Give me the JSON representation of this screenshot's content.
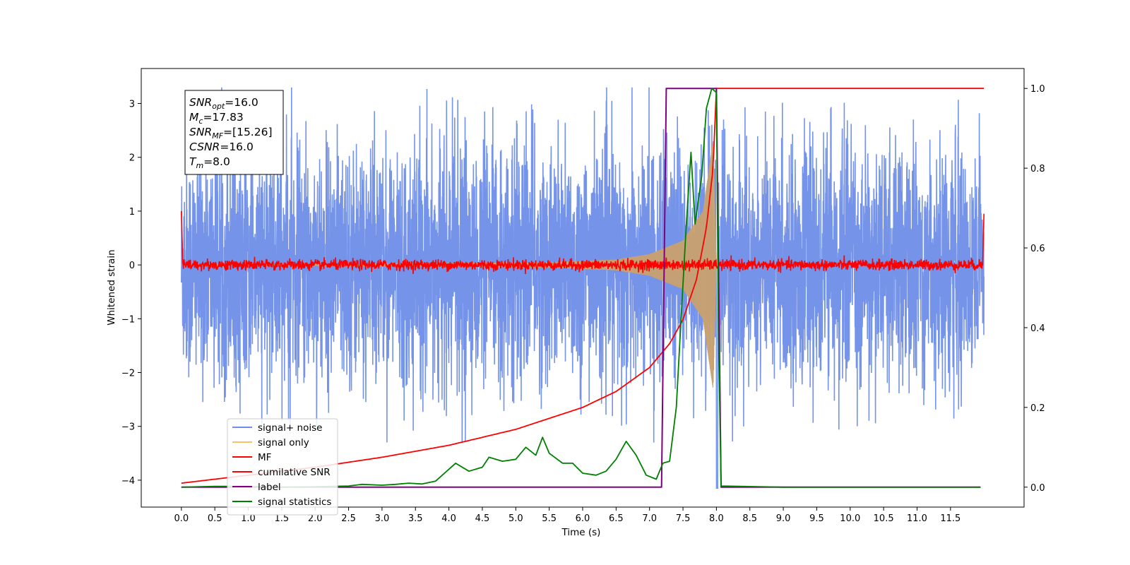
{
  "chart_data": {
    "type": "line",
    "xlabel": "Time (s)",
    "ylabel": "Whitened strain",
    "xlim": [
      -0.6,
      12.6
    ],
    "ylim": [
      -4.5,
      3.65
    ],
    "y2lim": [
      -0.05,
      1.05
    ],
    "x_ticks": [
      "0.0",
      "0.5",
      "1.0",
      "1.5",
      "2.0",
      "2.5",
      "3.0",
      "3.5",
      "4.0",
      "4.5",
      "5.0",
      "5.5",
      "6.0",
      "6.5",
      "7.0",
      "7.5",
      "8.0",
      "8.5",
      "9.0",
      "9.5",
      "10.0",
      "10.5",
      "11.0",
      "11.5"
    ],
    "y_ticks": [
      "3",
      "2",
      "1",
      "0",
      "−1",
      "−2",
      "−3",
      "−4"
    ],
    "y2_ticks": [
      "1.0",
      "0.8",
      "0.6",
      "0.4",
      "0.2",
      "0.0"
    ],
    "annotation": {
      "lines": [
        {
          "sym": "SNR",
          "sub": "opt",
          "val": "=16.0"
        },
        {
          "sym": "M",
          "sub": "c",
          "val": "=17.83"
        },
        {
          "sym": "SNR",
          "sub": "MF",
          "val": "=[15.26]"
        },
        {
          "sym": "CSNR",
          "sub": "",
          "val": "=16.0"
        },
        {
          "sym": "T",
          "sub": "m",
          "val": "=8.0"
        }
      ]
    },
    "legend": {
      "placement": "lower-left",
      "entries": [
        {
          "label": "signal+ noise",
          "color": "#6e8ee8"
        },
        {
          "label": "signal only",
          "color": "#f5c46a"
        },
        {
          "label": "MF",
          "color": "#ff0000"
        },
        {
          "label": "cumilative SNR",
          "color": "#ff0000"
        },
        {
          "label": "label",
          "color": "#800080"
        },
        {
          "label": "signal statistics",
          "color": "#008000"
        }
      ]
    },
    "series": [
      {
        "name": "signal+ noise",
        "axis": "left",
        "color": "#6e8ee8",
        "x_range": [
          0.0,
          12.0
        ],
        "sigma": 1.05,
        "envelope": [
          -2.7,
          2.65
        ],
        "merger_time": 8.0,
        "post_merger_value": -4.15
      },
      {
        "name": "signal only",
        "axis": "left",
        "color": "#c8a06e",
        "x_range": [
          0.0,
          8.0
        ],
        "chirp_amplitude": [
          {
            "x": 0.0,
            "y": 0.0
          },
          {
            "x": 5.5,
            "y": 0.05
          },
          {
            "x": 6.5,
            "y": 0.1
          },
          {
            "x": 7.0,
            "y": 0.2
          },
          {
            "x": 7.5,
            "y": 0.45
          },
          {
            "x": 7.8,
            "y": 1.0
          },
          {
            "x": 7.95,
            "y": 2.3
          },
          {
            "x": 8.0,
            "y": 0.0
          }
        ]
      },
      {
        "name": "MF",
        "axis": "left",
        "color": "#ff0000",
        "x_range": [
          0.0,
          12.0
        ],
        "center": 0.0,
        "sigma": 0.05,
        "start_value": 1.0,
        "end_value": 0.95
      },
      {
        "name": "cumilative SNR",
        "axis": "right",
        "color": "#ff0000",
        "points": [
          {
            "x": 0.0,
            "y": 0.01
          },
          {
            "x": 1.0,
            "y": 0.03
          },
          {
            "x": 2.0,
            "y": 0.05
          },
          {
            "x": 3.0,
            "y": 0.075
          },
          {
            "x": 4.0,
            "y": 0.105
          },
          {
            "x": 5.0,
            "y": 0.145
          },
          {
            "x": 6.0,
            "y": 0.2
          },
          {
            "x": 6.5,
            "y": 0.24
          },
          {
            "x": 7.0,
            "y": 0.3
          },
          {
            "x": 7.3,
            "y": 0.36
          },
          {
            "x": 7.5,
            "y": 0.42
          },
          {
            "x": 7.7,
            "y": 0.52
          },
          {
            "x": 7.85,
            "y": 0.65
          },
          {
            "x": 7.95,
            "y": 0.8
          },
          {
            "x": 8.0,
            "y": 1.0
          },
          {
            "x": 12.0,
            "y": 1.0
          }
        ]
      },
      {
        "name": "label",
        "axis": "right",
        "color": "#800080",
        "points": [
          {
            "x": 0.0,
            "y": 0.0
          },
          {
            "x": 7.18,
            "y": 0.0
          },
          {
            "x": 7.25,
            "y": 1.0
          },
          {
            "x": 8.0,
            "y": 1.0
          },
          {
            "x": 8.07,
            "y": 0.0
          },
          {
            "x": 11.95,
            "y": 0.0
          }
        ]
      },
      {
        "name": "signal statistics",
        "axis": "right",
        "color": "#008000",
        "points": [
          {
            "x": 0.0,
            "y": 0.0
          },
          {
            "x": 0.5,
            "y": 0.002
          },
          {
            "x": 1.0,
            "y": 0.002
          },
          {
            "x": 1.5,
            "y": 0.0
          },
          {
            "x": 2.0,
            "y": 0.001
          },
          {
            "x": 2.5,
            "y": 0.003
          },
          {
            "x": 2.7,
            "y": 0.007
          },
          {
            "x": 3.0,
            "y": 0.005
          },
          {
            "x": 3.2,
            "y": 0.007
          },
          {
            "x": 3.4,
            "y": 0.01
          },
          {
            "x": 3.6,
            "y": 0.008
          },
          {
            "x": 3.8,
            "y": 0.015
          },
          {
            "x": 4.0,
            "y": 0.045
          },
          {
            "x": 4.1,
            "y": 0.06
          },
          {
            "x": 4.3,
            "y": 0.04
          },
          {
            "x": 4.5,
            "y": 0.05
          },
          {
            "x": 4.6,
            "y": 0.075
          },
          {
            "x": 4.8,
            "y": 0.065
          },
          {
            "x": 5.0,
            "y": 0.07
          },
          {
            "x": 5.15,
            "y": 0.1
          },
          {
            "x": 5.3,
            "y": 0.08
          },
          {
            "x": 5.4,
            "y": 0.125
          },
          {
            "x": 5.5,
            "y": 0.085
          },
          {
            "x": 5.7,
            "y": 0.06
          },
          {
            "x": 5.85,
            "y": 0.06
          },
          {
            "x": 6.0,
            "y": 0.035
          },
          {
            "x": 6.2,
            "y": 0.03
          },
          {
            "x": 6.35,
            "y": 0.04
          },
          {
            "x": 6.5,
            "y": 0.07
          },
          {
            "x": 6.65,
            "y": 0.115
          },
          {
            "x": 6.8,
            "y": 0.08
          },
          {
            "x": 6.95,
            "y": 0.03
          },
          {
            "x": 7.1,
            "y": 0.02
          },
          {
            "x": 7.2,
            "y": 0.06
          },
          {
            "x": 7.3,
            "y": 0.065
          },
          {
            "x": 7.4,
            "y": 0.2
          },
          {
            "x": 7.48,
            "y": 0.45
          },
          {
            "x": 7.55,
            "y": 0.66
          },
          {
            "x": 7.62,
            "y": 0.84
          },
          {
            "x": 7.68,
            "y": 0.66
          },
          {
            "x": 7.78,
            "y": 0.78
          },
          {
            "x": 7.85,
            "y": 0.95
          },
          {
            "x": 7.93,
            "y": 1.0
          },
          {
            "x": 8.0,
            "y": 0.99
          },
          {
            "x": 8.03,
            "y": 0.4
          },
          {
            "x": 8.07,
            "y": 0.003
          },
          {
            "x": 9.0,
            "y": 0.0
          },
          {
            "x": 11.95,
            "y": 0.0
          }
        ]
      }
    ]
  }
}
